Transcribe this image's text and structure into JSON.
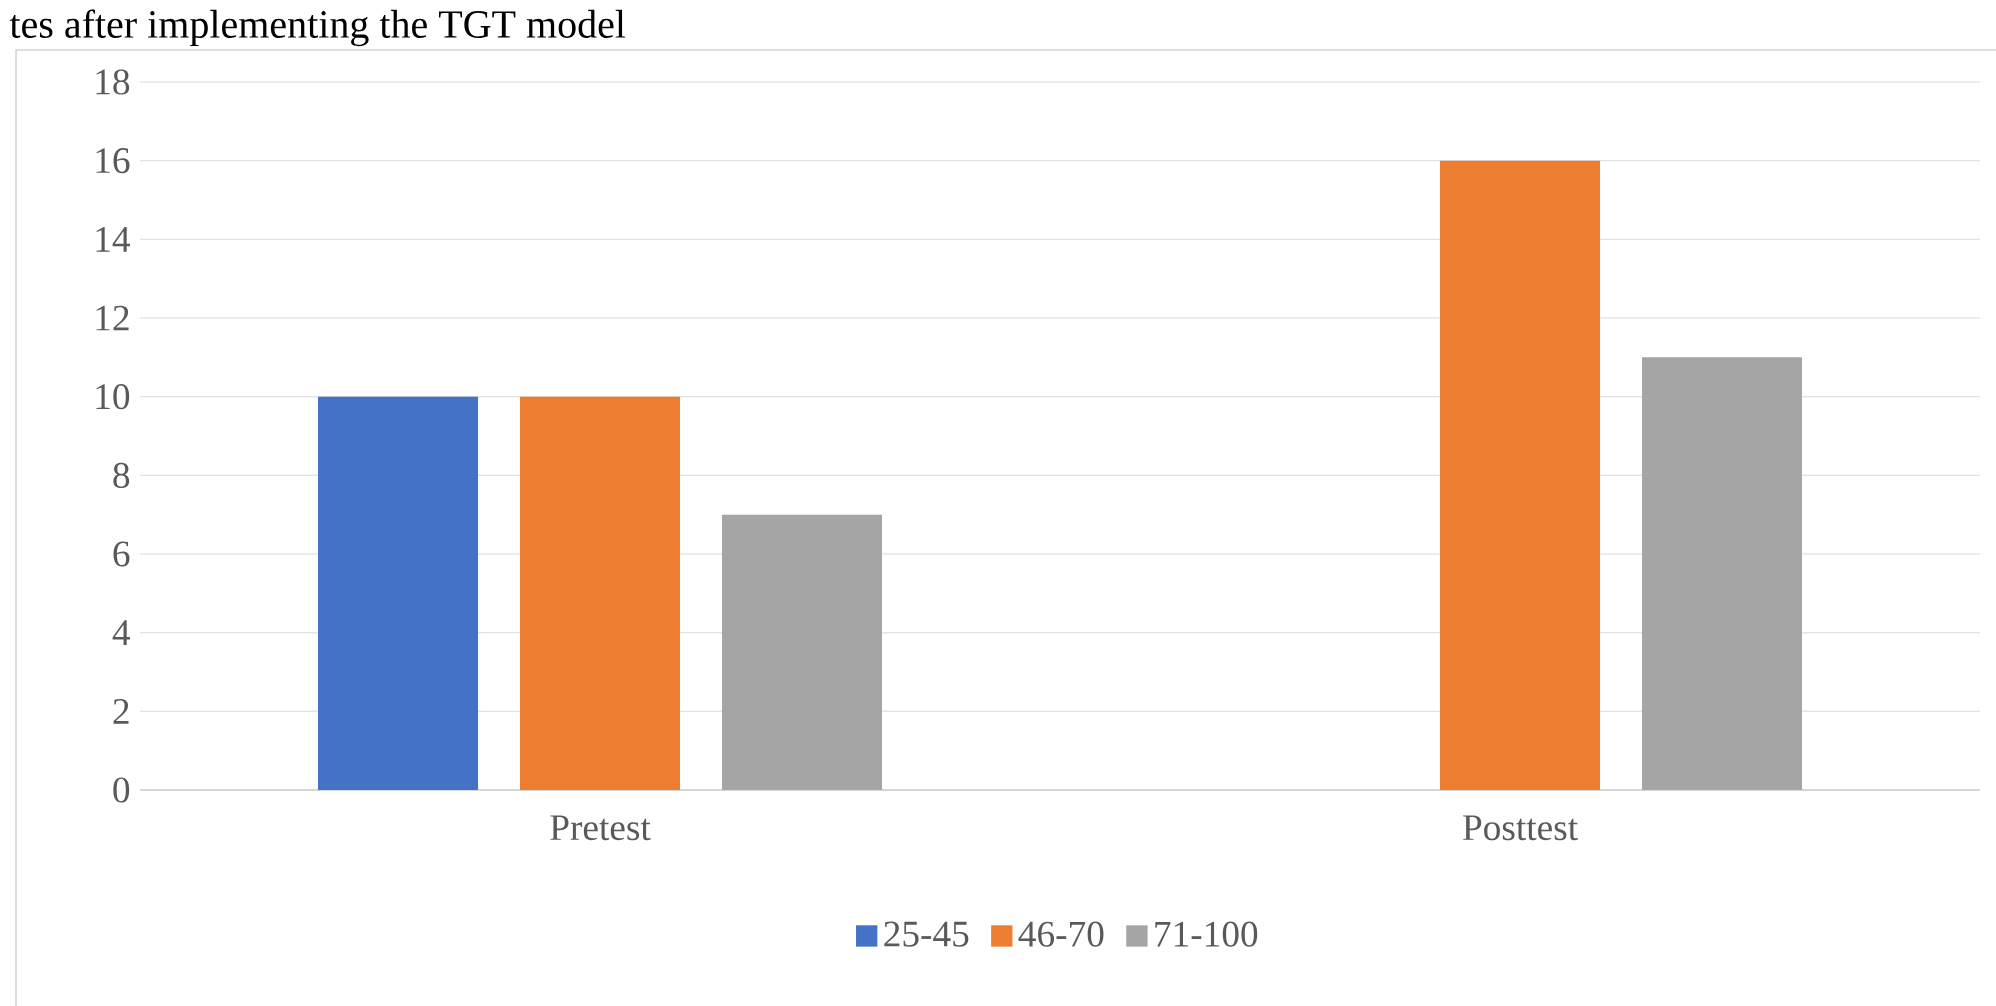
{
  "chart_data": {
    "type": "bar",
    "title": "tes after implementing the TGT model",
    "categories": [
      "Pretest",
      "Posttest"
    ],
    "series": [
      {
        "name": "25-45",
        "color": "#4472c4",
        "values": [
          10,
          0
        ]
      },
      {
        "name": "46-70",
        "color": "#ed7d31",
        "values": [
          10,
          16
        ]
      },
      {
        "name": "71-100",
        "color": "#a5a5a5",
        "values": [
          7,
          11
        ]
      }
    ],
    "ylim": [
      0,
      18
    ],
    "yticks": [
      0,
      2,
      4,
      6,
      8,
      10,
      12,
      14,
      16,
      18
    ],
    "grid": "y",
    "legend": "bottom"
  }
}
